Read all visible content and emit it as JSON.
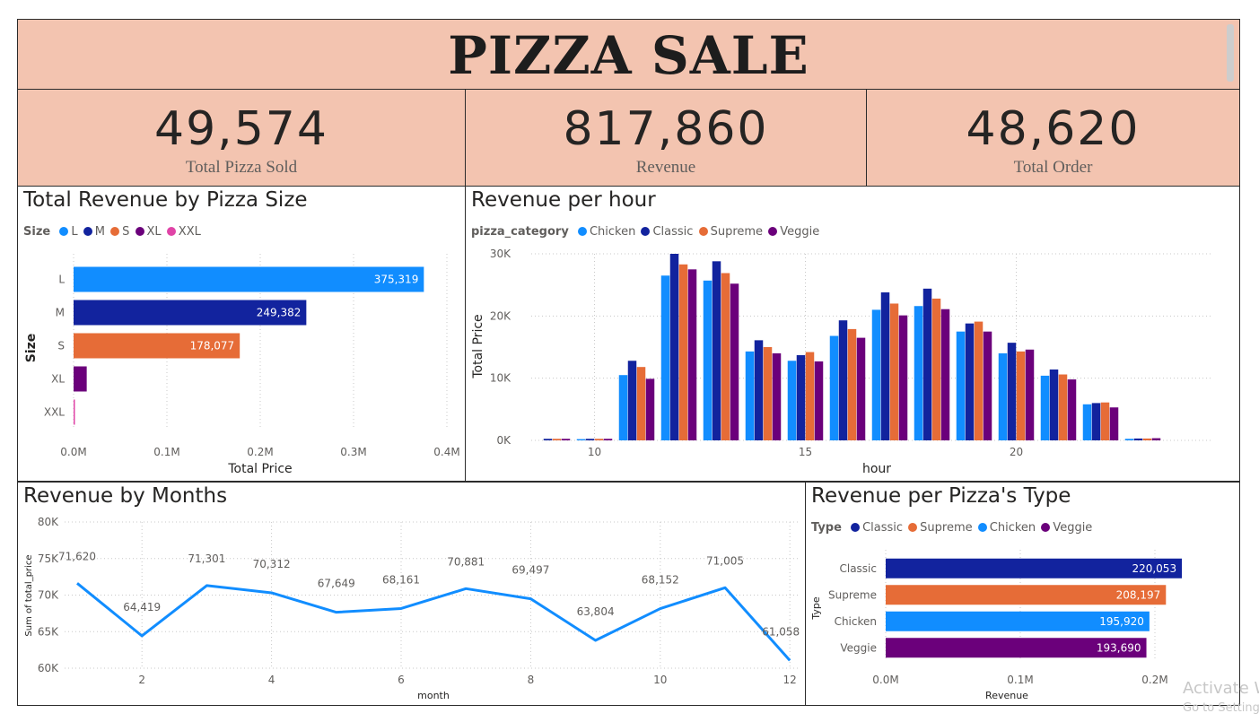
{
  "header": {
    "title": "PIZZA SALE"
  },
  "kpis": [
    {
      "value": "49,574",
      "label": "Total Pizza Sold"
    },
    {
      "value": "817,860",
      "label": "Revenue"
    },
    {
      "value": "48,620",
      "label": "Total Order"
    }
  ],
  "colors": {
    "header_bg": "#f3c4b0",
    "blue": "#118dff",
    "navy": "#12239e",
    "orange": "#e66c37",
    "purple": "#6b007b",
    "pink": "#e044a7"
  },
  "size_chart": {
    "title": "Total Revenue by Pizza Size",
    "legend_title": "Size",
    "legend": [
      "L",
      "M",
      "S",
      "XL",
      "XXL"
    ]
  },
  "hour_chart": {
    "title": "Revenue per hour",
    "legend_title": "pizza_category",
    "legend": [
      "Chicken",
      "Classic",
      "Supreme",
      "Veggie"
    ]
  },
  "month_chart": {
    "title": "Revenue by Months"
  },
  "type_chart": {
    "title": "Revenue per Pizza's Type",
    "legend_title": "Type",
    "legend": [
      "Classic",
      "Supreme",
      "Chicken",
      "Veggie"
    ]
  },
  "watermark": {
    "line1": "Activate W",
    "line2": "Go to Setting"
  },
  "chart_data": [
    {
      "type": "bar",
      "orientation": "horizontal",
      "title": "Total Revenue by Pizza Size",
      "categories": [
        "L",
        "M",
        "S",
        "XL",
        "XXL"
      ],
      "values": [
        375319,
        249382,
        178077,
        14076,
        1007
      ],
      "data_labels": [
        "375,319",
        "249,382",
        "178,077",
        "",
        ""
      ],
      "colors": [
        "#118dff",
        "#12239e",
        "#e66c37",
        "#6b007b",
        "#e044a7"
      ],
      "xlabel": "Total Price",
      "ylabel": "Size",
      "xlim": [
        0,
        400000
      ],
      "xticks": [
        "0.0M",
        "0.1M",
        "0.2M",
        "0.3M",
        "0.4M"
      ],
      "grid": true
    },
    {
      "type": "bar",
      "title": "Revenue per hour",
      "x": [
        9,
        10,
        11,
        12,
        13,
        14,
        15,
        16,
        17,
        18,
        19,
        20,
        21,
        22,
        23
      ],
      "series": [
        {
          "name": "Chicken",
          "color": "#118dff",
          "values": [
            0,
            200,
            10500,
            26500,
            25700,
            14300,
            12800,
            16800,
            21000,
            21600,
            17500,
            14000,
            10400,
            5800,
            250
          ]
        },
        {
          "name": "Classic",
          "color": "#12239e",
          "values": [
            250,
            250,
            12800,
            30000,
            28800,
            16100,
            13700,
            19300,
            23800,
            24400,
            18800,
            15700,
            11400,
            6000,
            300
          ]
        },
        {
          "name": "Supreme",
          "color": "#e66c37",
          "values": [
            250,
            250,
            11800,
            28300,
            26900,
            15000,
            14200,
            17900,
            22000,
            22800,
            19100,
            14300,
            10600,
            6100,
            300
          ]
        },
        {
          "name": "Veggie",
          "color": "#6b007b",
          "values": [
            250,
            250,
            9900,
            27500,
            25200,
            14000,
            12700,
            16500,
            20100,
            21100,
            17500,
            14600,
            9800,
            5300,
            350
          ]
        }
      ],
      "xlabel": "hour",
      "ylabel": "Total Price",
      "ylim": [
        0,
        30000
      ],
      "yticks": [
        "0K",
        "10K",
        "20K",
        "30K"
      ],
      "xticks": [
        "10",
        "15",
        "20"
      ],
      "grid": true
    },
    {
      "type": "line",
      "title": "Revenue by Months",
      "x": [
        1,
        2,
        3,
        4,
        5,
        6,
        7,
        8,
        9,
        10,
        11,
        12
      ],
      "values": [
        71620,
        64419,
        71301,
        70312,
        67649,
        68161,
        70881,
        69497,
        63804,
        68152,
        71005,
        61058
      ],
      "data_labels": [
        "71,620",
        "64,419",
        "71,301",
        "70,312",
        "67,649",
        "68,161",
        "70,881",
        "69,497",
        "63,804",
        "68,152",
        "71,005",
        "61,058"
      ],
      "color": "#118dff",
      "xlabel": "month",
      "ylabel": "Sum of total_price",
      "ylim": [
        60000,
        80000
      ],
      "yticks": [
        "60K",
        "65K",
        "70K",
        "75K",
        "80K"
      ],
      "xticks": [
        "2",
        "4",
        "6",
        "8",
        "10",
        "12"
      ],
      "grid": true
    },
    {
      "type": "bar",
      "orientation": "horizontal",
      "title": "Revenue per Pizza's Type",
      "categories": [
        "Classic",
        "Supreme",
        "Chicken",
        "Veggie"
      ],
      "values": [
        220053,
        208197,
        195920,
        193690
      ],
      "data_labels": [
        "220,053",
        "208,197",
        "195,920",
        "193,690"
      ],
      "colors": [
        "#12239e",
        "#e66c37",
        "#118dff",
        "#6b007b"
      ],
      "xlabel": "Revenue",
      "ylabel": "Type",
      "xlim": [
        0,
        200000
      ],
      "xticks": [
        "0.0M",
        "0.1M",
        "0.2M"
      ],
      "grid": true
    }
  ]
}
